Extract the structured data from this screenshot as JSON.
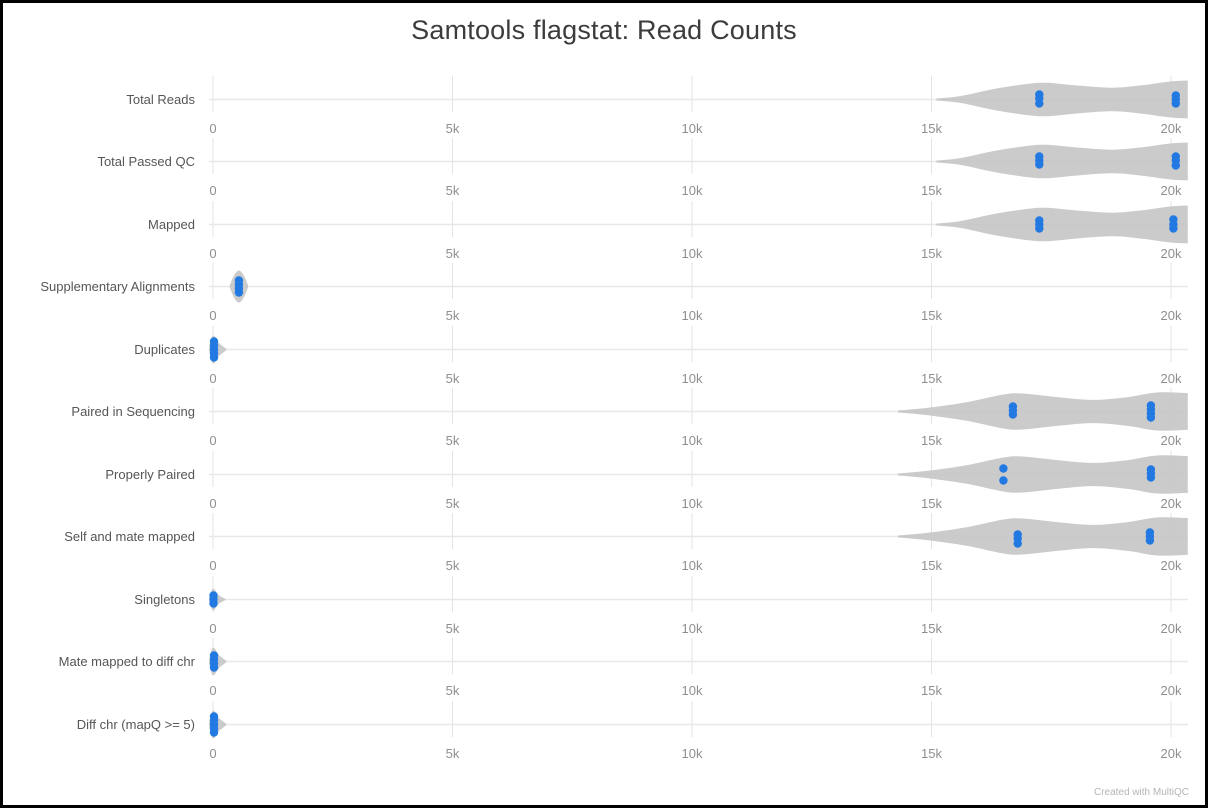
{
  "title": "Samtools flagstat: Read Counts",
  "footer": "Created with MultiQC",
  "colors": {
    "violin": "#c5c5c5",
    "point": "#2379e2",
    "grid_vertical": "#e3e3e3",
    "grid_horizontal": "#e8e8e8",
    "row_label": "#565656",
    "tick_label": "#8f8f8f",
    "title": "#3c3c3c",
    "footer": "#b5b5b5",
    "border": "#000000"
  },
  "axis": {
    "ticks": [
      {
        "label": "0",
        "value": 0
      },
      {
        "label": "5k",
        "value": 5000
      },
      {
        "label": "10k",
        "value": 10000
      },
      {
        "label": "15k",
        "value": 15000
      },
      {
        "label": "20k",
        "value": 20000
      }
    ],
    "max_value": 20000
  },
  "violin_shapes": {
    "wide_right_high": {
      "max_half": 19,
      "pts": [
        [
          15100,
          0.05
        ],
        [
          15600,
          0.18
        ],
        [
          16300,
          0.55
        ],
        [
          17000,
          0.82
        ],
        [
          17400,
          0.88
        ],
        [
          18100,
          0.72
        ],
        [
          18800,
          0.62
        ],
        [
          19400,
          0.75
        ],
        [
          20000,
          0.95
        ],
        [
          20350,
          1.0
        ]
      ]
    },
    "wide_right_low": {
      "max_half": 20,
      "pts": [
        [
          14300,
          0.05
        ],
        [
          14900,
          0.18
        ],
        [
          15700,
          0.45
        ],
        [
          16500,
          0.85
        ],
        [
          16900,
          0.9
        ],
        [
          17700,
          0.7
        ],
        [
          18400,
          0.58
        ],
        [
          19100,
          0.72
        ],
        [
          19700,
          0.95
        ],
        [
          20350,
          0.92
        ]
      ]
    },
    "near_zero_small": {
      "max_half": 16,
      "pts": [
        [
          350,
          0.08
        ],
        [
          440,
          0.7
        ],
        [
          540,
          1.0
        ],
        [
          640,
          0.7
        ],
        [
          730,
          0.08
        ]
      ]
    },
    "at_zero_short": {
      "max_half": 11,
      "pts": [
        [
          -80,
          0.15
        ],
        [
          0,
          1.0
        ],
        [
          120,
          0.4
        ],
        [
          260,
          0.05
        ]
      ]
    },
    "at_zero_tall": {
      "max_half": 14,
      "pts": [
        [
          -80,
          0.15
        ],
        [
          0,
          1.0
        ],
        [
          130,
          0.45
        ],
        [
          280,
          0.05
        ]
      ]
    }
  },
  "rows": [
    {
      "label": "Total Reads",
      "shape": "wide_right_high",
      "points": [
        {
          "x": 17250,
          "dys": [
            -5,
            -1,
            4
          ]
        },
        {
          "x": 20100,
          "dys": [
            -4,
            0,
            4
          ]
        }
      ]
    },
    {
      "label": "Total Passed QC",
      "shape": "wide_right_high",
      "points": [
        {
          "x": 17250,
          "dys": [
            -5,
            -1,
            3
          ]
        },
        {
          "x": 20100,
          "dys": [
            -5,
            -1,
            4
          ]
        }
      ]
    },
    {
      "label": "Mapped",
      "shape": "wide_right_high",
      "points": [
        {
          "x": 17250,
          "dys": [
            -4,
            0,
            4
          ]
        },
        {
          "x": 20050,
          "dys": [
            -5,
            0,
            4
          ]
        }
      ]
    },
    {
      "label": "Supplementary Alignments",
      "shape": "near_zero_small",
      "points": [
        {
          "x": 540,
          "dys": [
            -6,
            -2,
            2,
            6
          ]
        }
      ]
    },
    {
      "label": "Duplicates",
      "shape": "at_zero_tall",
      "points": [
        {
          "x": 20,
          "dys": [
            -8,
            -4,
            0,
            4,
            8
          ]
        }
      ]
    },
    {
      "label": "Paired in Sequencing",
      "shape": "wide_right_low",
      "points": [
        {
          "x": 16700,
          "dys": [
            -5,
            -1,
            3
          ]
        },
        {
          "x": 19580,
          "dys": [
            -6,
            -2,
            2,
            6
          ]
        }
      ]
    },
    {
      "label": "Properly Paired",
      "shape": "wide_right_low",
      "points": [
        {
          "x": 16500,
          "dys": [
            -6,
            6
          ]
        },
        {
          "x": 19580,
          "dys": [
            -5,
            -1,
            3
          ]
        }
      ]
    },
    {
      "label": "Self and mate mapped",
      "shape": "wide_right_low",
      "points": [
        {
          "x": 16800,
          "dys": [
            -2,
            2,
            7
          ]
        },
        {
          "x": 19560,
          "dys": [
            -4,
            0,
            4
          ]
        }
      ]
    },
    {
      "label": "Singletons",
      "shape": "at_zero_short",
      "points": [
        {
          "x": 10,
          "dys": [
            -4,
            0,
            4
          ]
        }
      ]
    },
    {
      "label": "Mate mapped to diff chr",
      "shape": "at_zero_tall",
      "points": [
        {
          "x": 20,
          "dys": [
            -6,
            -2,
            2,
            6
          ]
        }
      ]
    },
    {
      "label": "Diff chr (mapQ >= 5)",
      "shape": "at_zero_tall",
      "points": [
        {
          "x": 20,
          "dys": [
            -8,
            -4,
            0,
            4,
            8
          ]
        }
      ]
    }
  ],
  "chart_data": {
    "type": "scatter",
    "subtype": "violin-strip",
    "title": "Samtools flagstat: Read Counts",
    "note": "MultiQC violin plot: grey violins show the distribution of read counts across samples per category; blue markers are individual samples. Values estimated from pixel positions.",
    "x_axis": {
      "range": [
        0,
        20350
      ],
      "tick_values": [
        0,
        5000,
        10000,
        15000,
        20000
      ],
      "tick_labels": [
        "0",
        "5k",
        "10k",
        "15k",
        "20k"
      ]
    },
    "grid": true,
    "legend": false,
    "categories": [
      "Total Reads",
      "Total Passed QC",
      "Mapped",
      "Supplementary Alignments",
      "Duplicates",
      "Paired in Sequencing",
      "Properly Paired",
      "Self and mate mapped",
      "Singletons",
      "Mate mapped to diff chr",
      "Diff chr (mapQ >= 5)"
    ],
    "series": [
      {
        "name": "Total Reads",
        "points_approx": [
          17200,
          17250,
          17300,
          20050,
          20100,
          20150
        ],
        "violin_range": [
          15100,
          20350
        ]
      },
      {
        "name": "Total Passed QC",
        "points_approx": [
          17200,
          17250,
          17300,
          20050,
          20100,
          20150
        ],
        "violin_range": [
          15100,
          20350
        ]
      },
      {
        "name": "Mapped",
        "points_approx": [
          17200,
          17250,
          17300,
          20000,
          20050,
          20100
        ],
        "violin_range": [
          15100,
          20350
        ]
      },
      {
        "name": "Supplementary Alignments",
        "points_approx": [
          500,
          520,
          540,
          560,
          580
        ],
        "violin_range": [
          350,
          730
        ]
      },
      {
        "name": "Duplicates",
        "points_approx": [
          0,
          10,
          20,
          30,
          40
        ],
        "violin_range": [
          0,
          280
        ]
      },
      {
        "name": "Paired in Sequencing",
        "points_approx": [
          16650,
          16700,
          16750,
          19500,
          19550,
          19600,
          19650
        ],
        "violin_range": [
          14300,
          20350
        ]
      },
      {
        "name": "Properly Paired",
        "points_approx": [
          16450,
          16550,
          19550,
          19580,
          19620
        ],
        "violin_range": [
          14300,
          20350
        ]
      },
      {
        "name": "Self and mate mapped",
        "points_approx": [
          16750,
          16800,
          16850,
          19500,
          19560,
          19620
        ],
        "violin_range": [
          14300,
          20350
        ]
      },
      {
        "name": "Singletons",
        "points_approx": [
          0,
          5,
          10
        ],
        "violin_range": [
          0,
          260
        ]
      },
      {
        "name": "Mate mapped to diff chr",
        "points_approx": [
          0,
          10,
          20,
          30
        ],
        "violin_range": [
          0,
          280
        ]
      },
      {
        "name": "Diff chr (mapQ >= 5)",
        "points_approx": [
          0,
          10,
          20,
          30,
          40
        ],
        "violin_range": [
          0,
          280
        ]
      }
    ]
  }
}
